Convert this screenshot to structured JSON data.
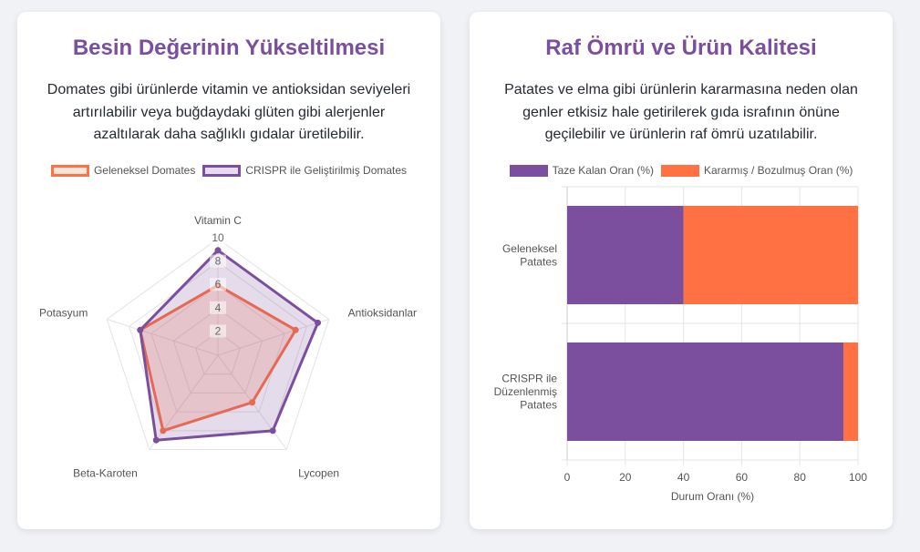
{
  "left_card": {
    "title": "Besin Değerinin Yükseltilmesi",
    "description": "Domates gibi ürünlerde vitamin ve antioksidan seviyeleri artırılabilir veya buğdaydaki glüten gibi alerjenler azaltılarak daha sağlıklı gıdalar üretilebilir."
  },
  "right_card": {
    "title": "Raf Ömrü ve Ürün Kalitesi",
    "description": "Patates ve elma gibi ürünlerin kararmasına neden olan genler etkisiz hale getirilerek gıda israfının önüne geçilebilir ve ürünlerin raf ömrü uzatılabilir."
  },
  "chart_data": [
    {
      "type": "radar",
      "axes": [
        "Vitamin C",
        "Antioksidanlar",
        "Lycopen",
        "Beta-Karoten",
        "Potasyum"
      ],
      "range": [
        0,
        10
      ],
      "ticks": [
        2,
        4,
        6,
        8,
        10
      ],
      "legend_position": "top",
      "series": [
        {
          "name": "Geleneksel Domates",
          "values": [
            6,
            7,
            5,
            8,
            7
          ],
          "color": "#ff7043",
          "fill": "rgba(255,112,67,0.2)"
        },
        {
          "name": "CRISPR ile Geliştirilmiş Domates",
          "values": [
            9,
            9,
            8,
            9,
            7
          ],
          "color": "#7b4f9d",
          "fill": "rgba(123,79,157,0.2)"
        }
      ]
    },
    {
      "type": "bar",
      "orientation": "horizontal",
      "stacked": true,
      "categories": [
        [
          "Geleneksel",
          "Patates"
        ],
        [
          "CRISPR ile",
          "Düzenlenmiş",
          "Patates"
        ]
      ],
      "series": [
        {
          "name": "Taze Kalan Oran (%)",
          "values": [
            40,
            95
          ],
          "color": "#7b4f9d"
        },
        {
          "name": "Kararmış / Bozulmuş Oran (%)",
          "values": [
            60,
            5
          ],
          "color": "#ff7043"
        }
      ],
      "xlabel": "Durum Oranı (%)",
      "xlim": [
        0,
        100
      ],
      "xticks": [
        0,
        20,
        40,
        60,
        80,
        100
      ],
      "grid": true,
      "legend_position": "top"
    }
  ]
}
